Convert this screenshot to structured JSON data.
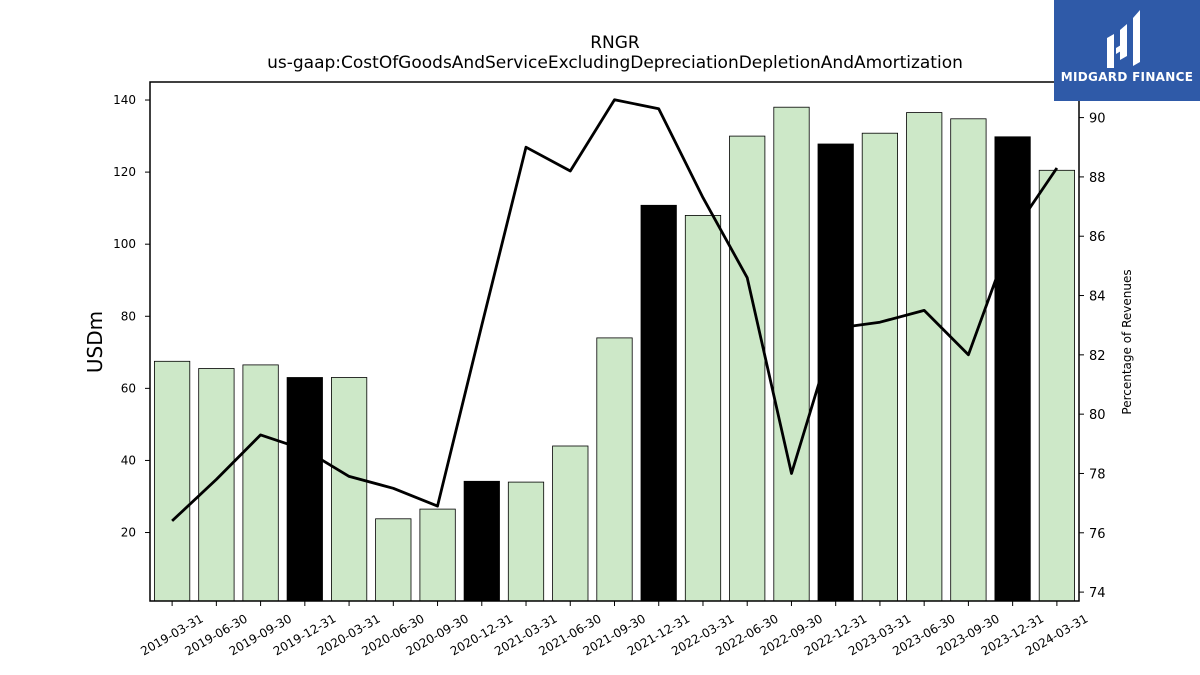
{
  "logo": {
    "text": "MIDGARD FINANCE",
    "background": "#2f5aa8"
  },
  "chart_data": {
    "type": "bar",
    "title": "RNGR",
    "subtitle": "us-gaap:CostOfGoodsAndServiceExcludingDepreciationDepletionAndAmortization",
    "ylabel": "USDm",
    "y2label": "Percentage of Revenues",
    "ylim": [
      1,
      145
    ],
    "y2lim": [
      73.7,
      91.2
    ],
    "yticks": [
      20,
      40,
      60,
      80,
      100,
      120,
      140
    ],
    "y2ticks": [
      74,
      76,
      78,
      80,
      82,
      84,
      86,
      88,
      90
    ],
    "categories": [
      "2019-03-31",
      "2019-06-30",
      "2019-09-30",
      "2019-12-31",
      "2020-03-31",
      "2020-06-30",
      "2020-09-30",
      "2020-12-31",
      "2021-03-31",
      "2021-06-30",
      "2021-09-30",
      "2021-12-31",
      "2022-03-31",
      "2022-06-30",
      "2022-09-30",
      "2022-12-31",
      "2023-03-31",
      "2023-06-30",
      "2023-09-30",
      "2023-12-31",
      "2024-03-31"
    ],
    "series": [
      {
        "kind": "bar",
        "values": [
          67.5,
          65.5,
          66.5,
          63.0,
          63.0,
          23.8,
          26.5,
          34.2,
          34.0,
          44.0,
          74.0,
          110.8,
          108.0,
          130.0,
          138.0,
          127.8,
          130.8,
          136.5,
          134.8,
          129.8,
          120.5
        ],
        "highlighted": [
          false,
          false,
          false,
          true,
          false,
          false,
          false,
          true,
          false,
          false,
          false,
          true,
          false,
          false,
          false,
          true,
          false,
          false,
          false,
          true,
          false
        ]
      },
      {
        "kind": "line",
        "axis": "right",
        "values": [
          76.4,
          77.8,
          79.3,
          78.8,
          77.9,
          77.5,
          76.9,
          83.0,
          89.0,
          88.2,
          90.6,
          90.3,
          87.3,
          84.6,
          78.0,
          82.9,
          83.1,
          83.5,
          82.0,
          86.1,
          88.3
        ]
      }
    ],
    "colors": {
      "bar": "#cde8c8",
      "bar_highlight": "#000000",
      "line": "#000000"
    }
  }
}
